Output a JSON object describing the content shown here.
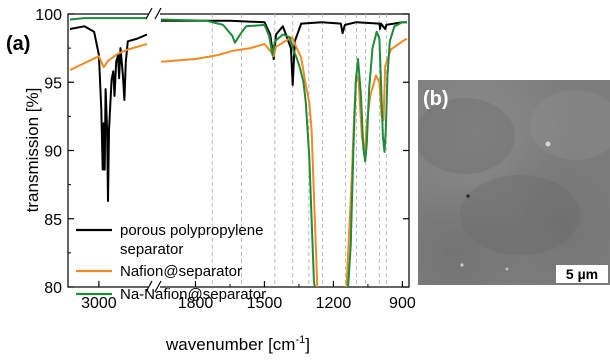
{
  "panel_a_label": "(a)",
  "panel_b_label": "(b)",
  "scale_bar_label": "5 µm",
  "chart_data": {
    "type": "line",
    "title": "",
    "xlabel_main": "wavenumber [cm",
    "xlabel_sup": "-1",
    "xlabel_end": "]",
    "ylabel": "transmission [%]",
    "ylim": [
      80,
      100
    ],
    "yticks": [
      "80",
      "85",
      "90",
      "95",
      "100"
    ],
    "x_segment1": {
      "range": [
        3300,
        2500
      ],
      "ticks": [
        "3000"
      ]
    },
    "x_segment2": {
      "range": [
        1950,
        880
      ],
      "ticks": [
        "1800",
        "1500",
        "1200",
        "900"
      ]
    },
    "reference_lines": [
      1727,
      1600,
      1455,
      1377,
      1307,
      1247,
      1148,
      1100,
      1060,
      1000,
      970
    ],
    "legend": [
      {
        "label_line1": "porous polypropylene",
        "label_line2": "separator",
        "color": "#000000"
      },
      {
        "label_line1": "Nafion@separator",
        "label_line2": "",
        "color": "#f08a24"
      },
      {
        "label_line1": "Na-Nafion@separator",
        "label_line2": "",
        "color": "#1f8b3a"
      }
    ],
    "series": [
      {
        "key": "pp",
        "color": "#000000",
        "segment1": [
          [
            3300,
            98.9
          ],
          [
            3150,
            99.1
          ],
          [
            3050,
            98.7
          ],
          [
            3000,
            97.0
          ],
          [
            2975,
            93.0
          ],
          [
            2960,
            88.6
          ],
          [
            2950,
            92.0
          ],
          [
            2940,
            88.6
          ],
          [
            2930,
            94.5
          ],
          [
            2915,
            91.5
          ],
          [
            2905,
            86.3
          ],
          [
            2895,
            91.5
          ],
          [
            2880,
            93.5
          ],
          [
            2868,
            95.2
          ],
          [
            2850,
            95.8
          ],
          [
            2838,
            94.0
          ],
          [
            2820,
            96.5
          ],
          [
            2800,
            97.0
          ],
          [
            2790,
            95.3
          ],
          [
            2775,
            97.5
          ],
          [
            2750,
            95.5
          ],
          [
            2735,
            93.7
          ],
          [
            2720,
            96.5
          ],
          [
            2700,
            98.0
          ],
          [
            2600,
            98.2
          ],
          [
            2500,
            98.5
          ]
        ],
        "segment2": [
          [
            1950,
            99.5
          ],
          [
            1800,
            99.5
          ],
          [
            1650,
            99.5
          ],
          [
            1500,
            99.4
          ],
          [
            1475,
            98.5
          ],
          [
            1460,
            96.7
          ],
          [
            1450,
            98.5
          ],
          [
            1420,
            99.1
          ],
          [
            1385,
            97.5
          ],
          [
            1377,
            94.8
          ],
          [
            1368,
            98.0
          ],
          [
            1340,
            99.3
          ],
          [
            1250,
            99.4
          ],
          [
            1168,
            99.3
          ],
          [
            1160,
            98.6
          ],
          [
            1150,
            99.2
          ],
          [
            1100,
            99.4
          ],
          [
            1000,
            99.3
          ],
          [
            997,
            98.9
          ],
          [
            993,
            99.3
          ],
          [
            975,
            98.9
          ],
          [
            970,
            99.2
          ],
          [
            900,
            99.4
          ],
          [
            880,
            99.4
          ]
        ]
      },
      {
        "key": "nafion",
        "color": "#f08a24",
        "segment1": [
          [
            3300,
            95.9
          ],
          [
            3150,
            96.4
          ],
          [
            3000,
            96.9
          ],
          [
            2950,
            96.1
          ],
          [
            2900,
            96.6
          ],
          [
            2800,
            97.1
          ],
          [
            2700,
            97.4
          ],
          [
            2600,
            97.6
          ],
          [
            2500,
            97.8
          ]
        ],
        "segment2": [
          [
            1950,
            96.5
          ],
          [
            1800,
            96.7
          ],
          [
            1700,
            97.0
          ],
          [
            1640,
            97.3
          ],
          [
            1600,
            97.4
          ],
          [
            1560,
            97.5
          ],
          [
            1500,
            97.8
          ],
          [
            1470,
            97.2
          ],
          [
            1460,
            96.9
          ],
          [
            1450,
            97.6
          ],
          [
            1400,
            98.1
          ],
          [
            1380,
            98.3
          ],
          [
            1365,
            97.7
          ],
          [
            1340,
            96.8
          ],
          [
            1320,
            94.8
          ],
          [
            1305,
            93.5
          ],
          [
            1295,
            91.5
          ],
          [
            1283,
            86.0
          ],
          [
            1270,
            80.0
          ],
          [
            1240,
            79.0
          ],
          [
            1152,
            79.0
          ],
          [
            1143,
            80.0
          ],
          [
            1120,
            88.0
          ],
          [
            1110,
            92.5
          ],
          [
            1100,
            95.6
          ],
          [
            1090,
            95.0
          ],
          [
            1076,
            91.0
          ],
          [
            1063,
            90.0
          ],
          [
            1055,
            92.0
          ],
          [
            1040,
            94.0
          ],
          [
            1015,
            95.5
          ],
          [
            1000,
            95.0
          ],
          [
            990,
            92.5
          ],
          [
            982,
            92.2
          ],
          [
            975,
            96.2
          ],
          [
            950,
            97.4
          ],
          [
            900,
            98.0
          ],
          [
            880,
            98.2
          ]
        ]
      },
      {
        "key": "na_nafion",
        "color": "#1f8b3a",
        "segment1": [
          [
            3300,
            99.6
          ],
          [
            3150,
            99.7
          ],
          [
            3000,
            99.7
          ],
          [
            2900,
            99.7
          ],
          [
            2800,
            99.7
          ],
          [
            2700,
            99.7
          ],
          [
            2600,
            99.7
          ],
          [
            2500,
            99.7
          ]
        ],
        "segment2": [
          [
            1950,
            99.6
          ],
          [
            1750,
            99.5
          ],
          [
            1680,
            99.2
          ],
          [
            1640,
            98.4
          ],
          [
            1628,
            97.9
          ],
          [
            1610,
            98.4
          ],
          [
            1580,
            99.1
          ],
          [
            1500,
            99.2
          ],
          [
            1480,
            98.4
          ],
          [
            1465,
            97.0
          ],
          [
            1455,
            98.0
          ],
          [
            1420,
            98.5
          ],
          [
            1390,
            98.3
          ],
          [
            1375,
            97.4
          ],
          [
            1360,
            96.8
          ],
          [
            1345,
            96.0
          ],
          [
            1330,
            95.0
          ],
          [
            1320,
            93.5
          ],
          [
            1305,
            89.5
          ],
          [
            1295,
            85.0
          ],
          [
            1285,
            80.5
          ],
          [
            1275,
            79.0
          ],
          [
            1140,
            79.0
          ],
          [
            1125,
            83.0
          ],
          [
            1113,
            90.0
          ],
          [
            1103,
            95.0
          ],
          [
            1093,
            96.7
          ],
          [
            1080,
            94.0
          ],
          [
            1070,
            90.2
          ],
          [
            1062,
            89.2
          ],
          [
            1055,
            90.5
          ],
          [
            1045,
            94.5
          ],
          [
            1030,
            97.5
          ],
          [
            1012,
            98.7
          ],
          [
            1000,
            98.2
          ],
          [
            993,
            95.0
          ],
          [
            985,
            91.0
          ],
          [
            978,
            89.9
          ],
          [
            972,
            91.5
          ],
          [
            965,
            95.5
          ],
          [
            955,
            98.0
          ],
          [
            935,
            99.1
          ],
          [
            900,
            99.4
          ],
          [
            880,
            99.4
          ]
        ]
      }
    ]
  }
}
